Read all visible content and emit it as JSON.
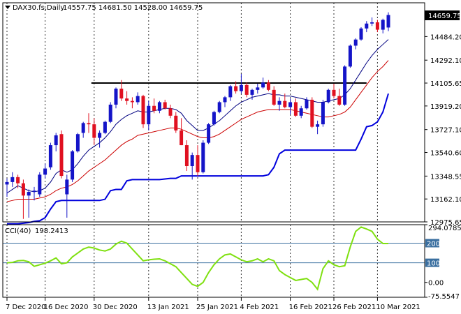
{
  "header": {
    "symbol": "DAX30.fs,Daily",
    "ohlc": "14557.75 14681.50 14528.00 14659.75"
  },
  "cci_label": {
    "name": "CCI(40)",
    "value": "198.2413"
  },
  "price_marker": "14659.75",
  "colors": {
    "up": "#1414c8",
    "down": "#e01020",
    "ma_fast": "#000080",
    "ma_slow": "#cc0000",
    "support": "#0000dd",
    "resistance": "#000000",
    "cci": "#7fe010",
    "level": "#3a6fa0",
    "grid": "#000000",
    "frame": "#000000",
    "marker_bg": "#000000",
    "marker_fg": "#ffffff"
  },
  "chart_data": [
    {
      "type": "candlestick",
      "title": "DAX30.fs,Daily",
      "ylim": [
        12975.65,
        14759.0
      ],
      "y_ticks": [
        12975.65,
        13162.1,
        13348.55,
        13540.6,
        13727.1,
        13919.2,
        14105.65,
        14292.1,
        14484.2
      ],
      "y_tick_labels": [
        "12975.65",
        "13162.10",
        "13348.55",
        "13540.60",
        "13727.10",
        "13919.20",
        "14105.65",
        "14292.10",
        "14484.20"
      ],
      "x_labels": [
        "7 Dec 2020",
        "16 Dec 2020",
        "30 Dec 2020",
        "13 Jan 2021",
        "25 Jan 2021",
        "4 Feb 2021",
        "16 Feb 2021",
        "26 Feb 2021",
        "10 Mar 2021"
      ],
      "x_label_index": [
        0,
        7,
        16,
        26,
        35,
        43,
        52,
        60,
        68
      ],
      "grid": "vertical dotted",
      "ohlc": [
        [
          13280,
          13330,
          13180,
          13300
        ],
        [
          13300,
          13380,
          13260,
          13340
        ],
        [
          13340,
          13360,
          13250,
          13290
        ],
        [
          13290,
          13320,
          13000,
          13190
        ],
        [
          13190,
          13240,
          13010,
          13220
        ],
        [
          13220,
          13260,
          13150,
          13230
        ],
        [
          13200,
          13380,
          13180,
          13360
        ],
        [
          13360,
          13450,
          13330,
          13410
        ],
        [
          13420,
          13620,
          13400,
          13600
        ],
        [
          13600,
          13700,
          13550,
          13680
        ],
        [
          13690,
          13720,
          13330,
          13350
        ],
        [
          13200,
          13360,
          13010,
          13320
        ],
        [
          13320,
          13560,
          13300,
          13550
        ],
        [
          13550,
          13700,
          13540,
          13690
        ],
        [
          13700,
          13790,
          13660,
          13780
        ],
        [
          13780,
          13860,
          13700,
          13770
        ],
        [
          13770,
          13820,
          13600,
          13660
        ],
        [
          13660,
          13720,
          13580,
          13700
        ],
        [
          13700,
          13800,
          13690,
          13790
        ],
        [
          13790,
          13950,
          13780,
          13930
        ],
        [
          13930,
          14070,
          13900,
          14060
        ],
        [
          14060,
          14130,
          13960,
          13980
        ],
        [
          13980,
          14040,
          13930,
          13960
        ],
        [
          13960,
          13990,
          13900,
          13950
        ],
        [
          13950,
          14030,
          13930,
          14000
        ],
        [
          14000,
          14010,
          13740,
          13770
        ],
        [
          13770,
          13960,
          13720,
          13920
        ],
        [
          13920,
          13980,
          13860,
          13880
        ],
        [
          13880,
          13960,
          13860,
          13950
        ],
        [
          13950,
          13970,
          13890,
          13900
        ],
        [
          13900,
          13930,
          13820,
          13840
        ],
        [
          13840,
          13870,
          13700,
          13720
        ],
        [
          13720,
          13820,
          13600,
          13600
        ],
        [
          13600,
          13640,
          13390,
          13430
        ],
        [
          13430,
          13540,
          13320,
          13520
        ],
        [
          13520,
          13600,
          13350,
          13380
        ],
        [
          13380,
          13640,
          13370,
          13620
        ],
        [
          13620,
          13780,
          13610,
          13770
        ],
        [
          13770,
          13880,
          13760,
          13870
        ],
        [
          13870,
          13960,
          13860,
          13950
        ],
        [
          13950,
          14000,
          13910,
          13990
        ],
        [
          13990,
          14090,
          13960,
          14080
        ],
        [
          14080,
          14120,
          14020,
          14040
        ],
        [
          14040,
          14180,
          14020,
          14090
        ],
        [
          14090,
          14110,
          13990,
          14010
        ],
        [
          14010,
          14060,
          13970,
          14050
        ],
        [
          14050,
          14100,
          14020,
          14070
        ],
        [
          14070,
          14150,
          14060,
          14110
        ],
        [
          14110,
          14130,
          14040,
          14050
        ],
        [
          14050,
          14080,
          13920,
          13930
        ],
        [
          13930,
          13990,
          13880,
          13960
        ],
        [
          13960,
          14020,
          13900,
          13910
        ],
        [
          13910,
          13980,
          13850,
          13950
        ],
        [
          13950,
          13980,
          13830,
          13840
        ],
        [
          13840,
          13920,
          13820,
          13900
        ],
        [
          13900,
          13990,
          13890,
          13970
        ],
        [
          13970,
          13990,
          13740,
          13750
        ],
        [
          13750,
          13800,
          13690,
          13770
        ],
        [
          13770,
          13970,
          13750,
          13950
        ],
        [
          13950,
          14060,
          13940,
          14050
        ],
        [
          14050,
          14100,
          13980,
          14000
        ],
        [
          14000,
          14060,
          13920,
          13930
        ],
        [
          13930,
          14250,
          13920,
          14240
        ],
        [
          14240,
          14420,
          14230,
          14410
        ],
        [
          14410,
          14470,
          14380,
          14460
        ],
        [
          14460,
          14560,
          14450,
          14550
        ],
        [
          14550,
          14610,
          14520,
          14590
        ],
        [
          14590,
          14640,
          14570,
          14600
        ],
        [
          14600,
          14620,
          14520,
          14540
        ],
        [
          14540,
          14630,
          14510,
          14620
        ],
        [
          14557.75,
          14681.5,
          14528.0,
          14659.75
        ]
      ],
      "resistance_level": 14105.65,
      "overlays": [
        {
          "name": "moving-average-fast",
          "values": [
            13210,
            13240,
            13270,
            13250,
            13230,
            13220,
            13230,
            13250,
            13300,
            13370,
            13400,
            13380,
            13400,
            13450,
            13510,
            13560,
            13590,
            13620,
            13660,
            13710,
            13770,
            13810,
            13840,
            13860,
            13880,
            13870,
            13870,
            13880,
            13890,
            13900,
            13900,
            13890,
            13860,
            13800,
            13760,
            13720,
            13720,
            13740,
            13770,
            13800,
            13840,
            13880,
            13920,
            13950,
            13970,
            13990,
            14000,
            14010,
            14020,
            14010,
            14010,
            14000,
            14000,
            13990,
            13980,
            13970,
            13960,
            13950,
            13950,
            13960,
            13970,
            13980,
            14010,
            14060,
            14130,
            14200,
            14270,
            14330,
            14380,
            14420,
            14460
          ]
        },
        {
          "name": "moving-average-slow",
          "values": [
            13140,
            13150,
            13160,
            13160,
            13160,
            13160,
            13170,
            13180,
            13200,
            13230,
            13250,
            13260,
            13280,
            13310,
            13350,
            13390,
            13420,
            13450,
            13480,
            13520,
            13560,
            13600,
            13630,
            13650,
            13680,
            13690,
            13700,
            13710,
            13720,
            13730,
            13740,
            13740,
            13730,
            13710,
            13690,
            13670,
            13660,
            13660,
            13670,
            13690,
            13720,
            13750,
            13780,
            13810,
            13830,
            13850,
            13870,
            13880,
            13890,
            13890,
            13890,
            13890,
            13890,
            13880,
            13870,
            13860,
            13850,
            13840,
            13830,
            13830,
            13840,
            13850,
            13870,
            13910,
            13970,
            14030,
            14090,
            14150,
            14200,
            14240,
            14290
          ]
        },
        {
          "name": "support-line",
          "values": [
            12960,
            12960,
            12960,
            12965,
            12970,
            12980,
            12985,
            13010,
            13080,
            13140,
            13150,
            13150,
            13150,
            13150,
            13150,
            13150,
            13150,
            13150,
            13160,
            13230,
            13240,
            13240,
            13310,
            13320,
            13320,
            13320,
            13320,
            13320,
            13320,
            13325,
            13330,
            13330,
            13350,
            13350,
            13350,
            13350,
            13350,
            13350,
            13350,
            13350,
            13350,
            13350,
            13350,
            13350,
            13350,
            13350,
            13350,
            13350,
            13360,
            13420,
            13530,
            13560,
            13560,
            13560,
            13560,
            13560,
            13560,
            13560,
            13560,
            13560,
            13560,
            13560,
            13560,
            13560,
            13560,
            13650,
            13750,
            13760,
            13790,
            13870,
            14020
          ]
        }
      ]
    },
    {
      "type": "line",
      "title": "CCI(40)",
      "ylim": [
        -75.5547,
        294.0785
      ],
      "y_ticks": [
        294.0785,
        200,
        100,
        0.0,
        -75.5547
      ],
      "y_tick_labels": [
        "294.0785",
        "200",
        "100",
        "0.00",
        "-75.5547"
      ],
      "levels": [
        200,
        100
      ],
      "series": [
        {
          "values": [
            100,
            102,
            110,
            112,
            105,
            82,
            90,
            98,
            110,
            125,
            95,
            100,
            130,
            150,
            170,
            180,
            175,
            165,
            160,
            170,
            195,
            210,
            200,
            170,
            140,
            110,
            115,
            118,
            120,
            110,
            95,
            80,
            50,
            20,
            -10,
            -20,
            0,
            50,
            90,
            120,
            140,
            145,
            130,
            115,
            105,
            110,
            120,
            105,
            120,
            110,
            60,
            40,
            25,
            10,
            15,
            20,
            0,
            -35,
            70,
            110,
            90,
            80,
            85,
            180,
            260,
            282,
            272,
            260,
            220,
            198,
            198
          ]
        }
      ]
    }
  ]
}
